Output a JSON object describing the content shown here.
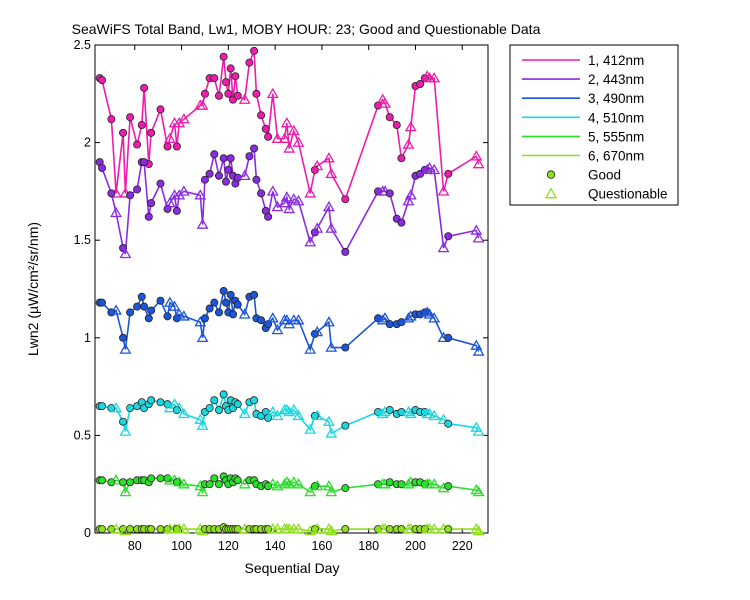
{
  "chart_data": {
    "type": "line",
    "title": "SeaWiFS Total Band, Lw1, MOBY HOUR: 23;  Good and Questionable Data",
    "xlabel": "Sequential Day",
    "ylabel": "Lwn2 (µW/cm²/sr/nm)",
    "xlim": [
      63,
      231
    ],
    "ylim": [
      0,
      2.5
    ],
    "xticks": [
      "80",
      "100",
      "120",
      "140",
      "160",
      "180",
      "200",
      "220"
    ],
    "yticks": [
      "0",
      "0.5",
      "1",
      "1.5",
      "2",
      "2.5"
    ],
    "grid": false,
    "legend_position": "outside-right",
    "legend_markers": {
      "good": "Good",
      "questionable": "Questionable"
    },
    "x": [
      65,
      66,
      70,
      72,
      75,
      76,
      78,
      81,
      83,
      84,
      86,
      87,
      91,
      94,
      95,
      97,
      98,
      99,
      101,
      108,
      109,
      110,
      112,
      114,
      116,
      118,
      119,
      120,
      121,
      122,
      123,
      124,
      127,
      129,
      131,
      132,
      134,
      136,
      137,
      139,
      141,
      144,
      145,
      146,
      148,
      150,
      155,
      157,
      158,
      163,
      164,
      170,
      184,
      186,
      187,
      189,
      192,
      194,
      197,
      198,
      200,
      202,
      204,
      205,
      206,
      208,
      212,
      214,
      226,
      227
    ],
    "status": [
      "g",
      "g",
      "g",
      "q",
      "g",
      "q",
      "g",
      "g",
      "g",
      "g",
      "g",
      "g",
      "g",
      "g",
      "q",
      "q",
      "g",
      "q",
      "q",
      "q",
      "q",
      "g",
      "g",
      "g",
      "g",
      "g",
      "g",
      "g",
      "g",
      "g",
      "g",
      "g",
      "q",
      "g",
      "g",
      "g",
      "g",
      "g",
      "g",
      "q",
      "q",
      "q",
      "q",
      "q",
      "q",
      "q",
      "q",
      "g",
      "q",
      "q",
      "q",
      "g",
      "g",
      "q",
      "q",
      "g",
      "g",
      "g",
      "q",
      "q",
      "g",
      "g",
      "g",
      "q",
      "q",
      "q",
      "q",
      "g",
      "q",
      "q"
    ],
    "series": [
      {
        "name": "1, 412nm",
        "color": "#ee1cac",
        "values": [
          2.33,
          2.32,
          2.12,
          1.74,
          2.05,
          1.74,
          2.13,
          1.99,
          2.09,
          2.28,
          1.89,
          2.05,
          2.17,
          1.98,
          2.02,
          2.1,
          1.98,
          2.1,
          2.12,
          2.19,
          2.19,
          2.25,
          2.33,
          2.33,
          2.24,
          2.44,
          2.31,
          2.25,
          2.38,
          2.22,
          2.34,
          2.24,
          2.22,
          2.41,
          2.47,
          2.25,
          2.14,
          2.07,
          2.03,
          2.25,
          2.02,
          2.02,
          2.1,
          1.97,
          2.06,
          2.0,
          1.74,
          1.86,
          1.88,
          1.92,
          1.84,
          1.71,
          2.19,
          2.22,
          2.2,
          2.13,
          2.09,
          1.92,
          1.99,
          2.08,
          2.29,
          2.3,
          2.33,
          2.34,
          2.33,
          2.33,
          1.75,
          1.84,
          1.93,
          1.89
        ]
      },
      {
        "name": "2, 443nm",
        "color": "#8a2be2",
        "values": [
          1.9,
          1.87,
          1.74,
          1.64,
          1.46,
          1.43,
          1.73,
          1.76,
          1.9,
          1.9,
          1.62,
          1.69,
          1.79,
          1.66,
          1.69,
          1.73,
          1.65,
          1.73,
          1.75,
          1.73,
          1.58,
          1.81,
          1.84,
          1.94,
          1.83,
          1.92,
          1.8,
          1.86,
          1.92,
          1.83,
          1.79,
          1.82,
          1.83,
          1.93,
          1.97,
          1.81,
          1.74,
          1.65,
          1.62,
          1.75,
          1.67,
          1.69,
          1.72,
          1.66,
          1.71,
          1.7,
          1.49,
          1.54,
          1.56,
          1.67,
          1.56,
          1.44,
          1.75,
          1.75,
          1.75,
          1.74,
          1.61,
          1.59,
          1.7,
          1.73,
          1.83,
          1.84,
          1.86,
          1.86,
          1.87,
          1.86,
          1.46,
          1.52,
          1.55,
          1.51
        ]
      },
      {
        "name": "3, 490nm",
        "color": "#1c56d8",
        "values": [
          1.18,
          1.18,
          1.13,
          1.14,
          1.0,
          0.94,
          1.13,
          1.16,
          1.21,
          1.16,
          1.1,
          1.14,
          1.19,
          1.11,
          1.18,
          1.16,
          1.1,
          1.12,
          1.11,
          1.08,
          1.0,
          1.1,
          1.15,
          1.18,
          1.13,
          1.24,
          1.18,
          1.13,
          1.22,
          1.12,
          1.19,
          1.17,
          1.12,
          1.21,
          1.22,
          1.1,
          1.09,
          1.05,
          1.07,
          1.1,
          1.04,
          1.09,
          1.09,
          1.07,
          1.09,
          1.09,
          0.94,
          1.02,
          1.03,
          1.08,
          0.95,
          0.95,
          1.1,
          1.09,
          1.1,
          1.07,
          1.07,
          1.08,
          1.1,
          1.11,
          1.12,
          1.12,
          1.13,
          1.13,
          1.12,
          1.1,
          1.0,
          1.0,
          0.96,
          0.93
        ]
      },
      {
        "name": "4, 510nm",
        "color": "#19d8e0",
        "values": [
          0.65,
          0.65,
          0.64,
          0.64,
          0.57,
          0.52,
          0.64,
          0.65,
          0.67,
          0.64,
          0.66,
          0.68,
          0.67,
          0.66,
          0.64,
          0.66,
          0.63,
          0.64,
          0.61,
          0.58,
          0.55,
          0.62,
          0.64,
          0.68,
          0.63,
          0.71,
          0.65,
          0.63,
          0.68,
          0.64,
          0.67,
          0.66,
          0.61,
          0.67,
          0.68,
          0.61,
          0.6,
          0.62,
          0.59,
          0.62,
          0.6,
          0.63,
          0.63,
          0.62,
          0.63,
          0.6,
          0.53,
          0.6,
          0.6,
          0.57,
          0.51,
          0.55,
          0.62,
          0.61,
          0.62,
          0.63,
          0.61,
          0.62,
          0.62,
          0.61,
          0.63,
          0.62,
          0.62,
          0.61,
          0.61,
          0.6,
          0.58,
          0.56,
          0.54,
          0.52
        ]
      },
      {
        "name": "5, 555nm",
        "color": "#2ae02a",
        "values": [
          0.27,
          0.27,
          0.26,
          0.27,
          0.26,
          0.21,
          0.26,
          0.27,
          0.27,
          0.27,
          0.26,
          0.28,
          0.28,
          0.28,
          0.27,
          0.27,
          0.26,
          0.26,
          0.25,
          0.24,
          0.21,
          0.25,
          0.25,
          0.28,
          0.25,
          0.29,
          0.27,
          0.25,
          0.28,
          0.26,
          0.28,
          0.27,
          0.25,
          0.27,
          0.27,
          0.25,
          0.24,
          0.25,
          0.24,
          0.25,
          0.24,
          0.25,
          0.26,
          0.25,
          0.26,
          0.25,
          0.21,
          0.24,
          0.24,
          0.24,
          0.21,
          0.23,
          0.25,
          0.25,
          0.25,
          0.26,
          0.25,
          0.25,
          0.25,
          0.26,
          0.26,
          0.26,
          0.25,
          0.25,
          0.25,
          0.25,
          0.23,
          0.24,
          0.22,
          0.21
        ]
      },
      {
        "name": "6, 670nm",
        "color": "#8ee01e",
        "values": [
          0.02,
          0.02,
          0.02,
          0.02,
          0.02,
          0.01,
          0.02,
          0.02,
          0.02,
          0.02,
          0.02,
          0.02,
          0.02,
          0.02,
          0.02,
          0.02,
          0.02,
          0.02,
          0.02,
          0.02,
          0.01,
          0.02,
          0.02,
          0.02,
          0.02,
          0.03,
          0.02,
          0.02,
          0.02,
          0.02,
          0.02,
          0.02,
          0.02,
          0.02,
          0.02,
          0.02,
          0.02,
          0.02,
          0.02,
          0.02,
          0.02,
          0.02,
          0.02,
          0.02,
          0.02,
          0.02,
          0.01,
          0.02,
          0.02,
          0.02,
          0.01,
          0.02,
          0.02,
          0.02,
          0.02,
          0.02,
          0.02,
          0.02,
          0.02,
          0.02,
          0.02,
          0.02,
          0.02,
          0.02,
          0.02,
          0.02,
          0.02,
          0.02,
          0.02,
          0.01
        ]
      }
    ]
  }
}
